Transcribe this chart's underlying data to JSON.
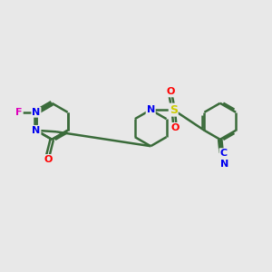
{
  "background_color": "#e8e8e8",
  "bond_color": "#3a6b3a",
  "bond_width": 1.8,
  "atom_colors": {
    "N": "#0000ee",
    "O": "#ff0000",
    "F": "#dd00bb",
    "S": "#cccc00",
    "C": "#000000"
  },
  "figsize": [
    3.0,
    3.0
  ],
  "dpi": 100
}
